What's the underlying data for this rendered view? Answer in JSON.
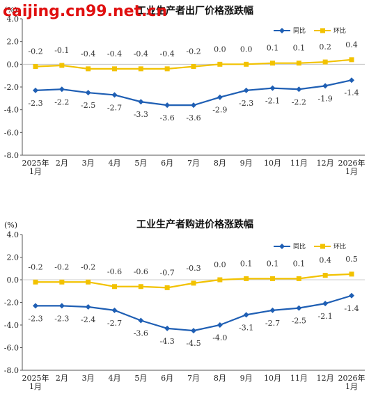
{
  "watermark": "caijing.cn99.net.cn",
  "chart_data": [
    {
      "type": "line",
      "title": "工业生产者出厂价格涨跌幅",
      "unit_label": "(%)",
      "categories": [
        "2025年\n1月",
        "2月",
        "3月",
        "4月",
        "5月",
        "6月",
        "7月",
        "8月",
        "9月",
        "10月",
        "11月",
        "12月",
        "2026年\n1月"
      ],
      "ylim": [
        -8.0,
        4.0
      ],
      "yticks": [
        "4.0",
        "2.0",
        "0.0",
        "-2.0",
        "-4.0",
        "-6.0",
        "-8.0"
      ],
      "legend_position": "top-right",
      "series": [
        {
          "name": "同比",
          "color": "#1f5fb4",
          "marker": "diamond",
          "values": [
            -2.3,
            -2.2,
            -2.5,
            -2.7,
            -3.3,
            -3.6,
            -3.6,
            -2.9,
            -2.3,
            -2.1,
            -2.2,
            -1.9,
            -1.4
          ],
          "labels": [
            "-2.3",
            "-2.2",
            "-2.5",
            "-2.7",
            "-3.3",
            "-3.6",
            "-3.6",
            "-2.9",
            "-2.3",
            "-2.1",
            "-2.2",
            "-1.9",
            "-1.4"
          ]
        },
        {
          "name": "环比",
          "color": "#f2c200",
          "marker": "square",
          "values": [
            -0.2,
            -0.1,
            -0.4,
            -0.4,
            -0.4,
            -0.4,
            -0.2,
            0.0,
            0.0,
            0.1,
            0.1,
            0.2,
            0.4
          ],
          "labels": [
            "-0.2",
            "-0.1",
            "-0.4",
            "-0.4",
            "-0.4",
            "-0.4",
            "-0.2",
            "0.0",
            "0.0",
            "0.1",
            "0.1",
            "0.2",
            "0.4"
          ]
        }
      ]
    },
    {
      "type": "line",
      "title": "工业生产者购进价格涨跌幅",
      "unit_label": "(%)",
      "categories": [
        "2025年\n1月",
        "2月",
        "3月",
        "4月",
        "5月",
        "6月",
        "7月",
        "8月",
        "9月",
        "10月",
        "11月",
        "12月",
        "2026年\n1月"
      ],
      "ylim": [
        -8.0,
        4.0
      ],
      "yticks": [
        "4.0",
        "2.0",
        "0.0",
        "-2.0",
        "-4.0",
        "-6.0",
        "-8.0"
      ],
      "legend_position": "top-right",
      "series": [
        {
          "name": "同比",
          "color": "#1f5fb4",
          "marker": "diamond",
          "values": [
            -2.3,
            -2.3,
            -2.4,
            -2.7,
            -3.6,
            -4.3,
            -4.5,
            -4.0,
            -3.1,
            -2.7,
            -2.5,
            -2.1,
            -1.4
          ],
          "labels": [
            "-2.3",
            "-2.3",
            "-2.4",
            "-2.7",
            "-3.6",
            "-4.3",
            "-4.5",
            "-4.0",
            "-3.1",
            "-2.7",
            "-2.5",
            "-2.1",
            "-1.4"
          ]
        },
        {
          "name": "环比",
          "color": "#f2c200",
          "marker": "square",
          "values": [
            -0.2,
            -0.2,
            -0.2,
            -0.6,
            -0.6,
            -0.7,
            -0.3,
            0.0,
            0.1,
            0.1,
            0.1,
            0.4,
            0.5
          ],
          "labels": [
            "-0.2",
            "-0.2",
            "-0.2",
            "-0.6",
            "-0.6",
            "-0.7",
            "-0.3",
            "0.0",
            "0.1",
            "0.1",
            "0.1",
            "0.4",
            "0.5"
          ]
        }
      ]
    }
  ]
}
